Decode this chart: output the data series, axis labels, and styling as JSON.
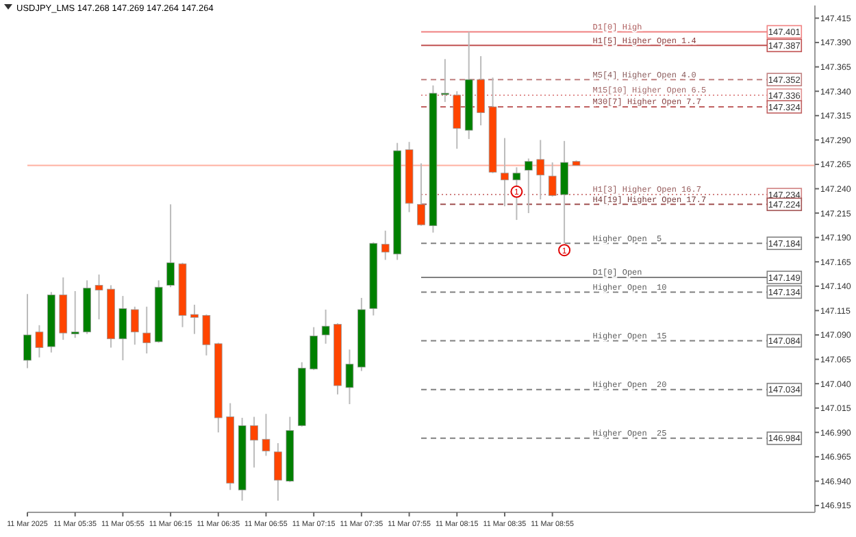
{
  "chart_data": {
    "type": "candlestick",
    "title": "USDJPY_LMS 147.268 147.269 147.264 147.264",
    "x": [
      "2025-03-11T05:15",
      "2025-03-11T05:20",
      "2025-03-11T05:25",
      "2025-03-11T05:30",
      "2025-03-11T05:35",
      "2025-03-11T05:40",
      "2025-03-11T05:45",
      "2025-03-11T05:50",
      "2025-03-11T05:55",
      "2025-03-11T06:00",
      "2025-03-11T06:05",
      "2025-03-11T06:10",
      "2025-03-11T06:15",
      "2025-03-11T06:20",
      "2025-03-11T06:25",
      "2025-03-11T06:30",
      "2025-03-11T06:35",
      "2025-03-11T06:40",
      "2025-03-11T06:45",
      "2025-03-11T06:50",
      "2025-03-11T06:55",
      "2025-03-11T07:00",
      "2025-03-11T07:05",
      "2025-03-11T07:10",
      "2025-03-11T07:15",
      "2025-03-11T07:20",
      "2025-03-11T07:25",
      "2025-03-11T07:30",
      "2025-03-11T07:35",
      "2025-03-11T07:40",
      "2025-03-11T07:45",
      "2025-03-11T07:50",
      "2025-03-11T07:55",
      "2025-03-11T08:00",
      "2025-03-11T08:05",
      "2025-03-11T08:10",
      "2025-03-11T08:15",
      "2025-03-11T08:20",
      "2025-03-11T08:25",
      "2025-03-11T08:30",
      "2025-03-11T08:35",
      "2025-03-11T08:40",
      "2025-03-11T08:45",
      "2025-03-11T08:50",
      "2025-03-11T08:55",
      "2025-03-11T09:00",
      "2025-03-11T09:05"
    ],
    "ohlc": [
      [
        147.064,
        147.132,
        147.056,
        147.09
      ],
      [
        147.093,
        147.1,
        147.067,
        147.077
      ],
      [
        147.078,
        147.134,
        147.072,
        147.131
      ],
      [
        147.131,
        147.149,
        147.085,
        147.092
      ],
      [
        147.091,
        147.135,
        147.087,
        147.093
      ],
      [
        147.093,
        147.146,
        147.091,
        147.138
      ],
      [
        147.141,
        147.152,
        147.106,
        147.136
      ],
      [
        147.137,
        147.141,
        147.077,
        147.086
      ],
      [
        147.086,
        147.13,
        147.064,
        147.117
      ],
      [
        147.116,
        147.119,
        147.08,
        147.093
      ],
      [
        147.092,
        147.119,
        147.071,
        147.082
      ],
      [
        147.083,
        147.146,
        147.082,
        147.139
      ],
      [
        147.141,
        147.224,
        147.139,
        147.164
      ],
      [
        147.163,
        147.164,
        147.098,
        147.11
      ],
      [
        147.111,
        147.121,
        147.091,
        147.108
      ],
      [
        147.11,
        147.111,
        147.069,
        147.08
      ],
      [
        147.081,
        147.082,
        146.99,
        147.005
      ],
      [
        147.006,
        147.02,
        146.931,
        146.938
      ],
      [
        146.931,
        147.005,
        146.92,
        146.997
      ],
      [
        146.997,
        147.006,
        146.954,
        146.982
      ],
      [
        146.983,
        147.009,
        146.966,
        146.971
      ],
      [
        146.97,
        146.979,
        146.92,
        146.941
      ],
      [
        146.94,
        147.006,
        146.939,
        146.992
      ],
      [
        146.997,
        147.062,
        146.996,
        147.056
      ],
      [
        147.055,
        147.098,
        147.054,
        147.089
      ],
      [
        147.09,
        147.116,
        147.081,
        147.099
      ],
      [
        147.101,
        147.102,
        147.029,
        147.038
      ],
      [
        147.036,
        147.075,
        147.019,
        147.06
      ],
      [
        147.057,
        147.128,
        147.053,
        147.116
      ],
      [
        147.117,
        147.185,
        147.11,
        147.184
      ],
      [
        147.183,
        147.197,
        147.167,
        147.175
      ],
      [
        147.173,
        147.287,
        147.167,
        147.279
      ],
      [
        147.28,
        147.288,
        147.216,
        147.225
      ],
      [
        147.224,
        147.266,
        147.202,
        147.203
      ],
      [
        147.202,
        147.346,
        147.195,
        147.338
      ],
      [
        147.337,
        147.373,
        147.329,
        147.338
      ],
      [
        147.336,
        147.34,
        147.281,
        147.302
      ],
      [
        147.3,
        147.401,
        147.291,
        147.352
      ],
      [
        147.352,
        147.376,
        147.305,
        147.318
      ],
      [
        147.324,
        147.354,
        147.256,
        147.257
      ],
      [
        147.256,
        147.292,
        147.222,
        147.249
      ],
      [
        147.249,
        147.262,
        147.208,
        147.256
      ],
      [
        147.259,
        147.271,
        147.215,
        147.268
      ],
      [
        147.27,
        147.29,
        147.229,
        147.254
      ],
      [
        147.253,
        147.267,
        147.232,
        147.233
      ],
      [
        147.234,
        147.289,
        147.184,
        147.267
      ],
      [
        147.268,
        147.269,
        147.264,
        147.264
      ]
    ],
    "colors": [
      "#008000",
      "#ff4500",
      "#008000",
      "#ff4500",
      "#008000",
      "#008000",
      "#ff4500",
      "#ff4500",
      "#008000",
      "#ff4500",
      "#ff4500",
      "#008000",
      "#008000",
      "#ff4500",
      "#ff4500",
      "#ff4500",
      "#ff4500",
      "#ff4500",
      "#008000",
      "#ff4500",
      "#ff4500",
      "#ff4500",
      "#008000",
      "#008000",
      "#008000",
      "#008000",
      "#ff4500",
      "#008000",
      "#008000",
      "#008000",
      "#ff4500",
      "#008000",
      "#ff4500",
      "#ff4500",
      "#008000",
      "#008000",
      "#ff4500",
      "#008000",
      "#ff4500",
      "#ff4500",
      "#ff4500",
      "#008000",
      "#008000",
      "#ff4500",
      "#ff4500",
      "#008000",
      "#ff4500"
    ],
    "xlim": [
      "2025-03-11T05:15",
      "2025-03-11T10:45"
    ],
    "xticks": [
      {
        "value": "2025-03-11T05:15",
        "label": "11 Mar 2025"
      },
      {
        "value": "2025-03-11T05:35",
        "label": "11 Mar 05:35"
      },
      {
        "value": "2025-03-11T05:55",
        "label": "11 Mar 05:55"
      },
      {
        "value": "2025-03-11T06:15",
        "label": "11 Mar 06:15"
      },
      {
        "value": "2025-03-11T06:35",
        "label": "11 Mar 06:35"
      },
      {
        "value": "2025-03-11T06:55",
        "label": "11 Mar 06:55"
      },
      {
        "value": "2025-03-11T07:15",
        "label": "11 Mar 07:15"
      },
      {
        "value": "2025-03-11T07:35",
        "label": "11 Mar 07:35"
      },
      {
        "value": "2025-03-11T07:55",
        "label": "11 Mar 07:55"
      },
      {
        "value": "2025-03-11T08:15",
        "label": "11 Mar 08:15"
      },
      {
        "value": "2025-03-11T08:35",
        "label": "11 Mar 08:35"
      },
      {
        "value": "2025-03-11T08:55",
        "label": "11 Mar 08:55"
      }
    ],
    "ylim": [
      146.908,
      147.428
    ],
    "yticks": [
      146.915,
      {
        "value": 146.94,
        "label": "146.940"
      },
      146.965,
      {
        "value": 146.99,
        "label": "146.990"
      },
      147.015,
      {
        "value": 147.04,
        "label": "147.040"
      },
      147.065,
      {
        "value": 147.09,
        "label": "147.090"
      },
      147.115,
      {
        "value": 147.14,
        "label": "147.140"
      },
      147.165,
      {
        "value": 147.19,
        "label": "147.190"
      },
      147.215,
      {
        "value": 147.24,
        "label": "147.240"
      },
      147.265,
      {
        "value": 147.29,
        "label": "147.290"
      },
      147.315,
      {
        "value": 147.34,
        "label": "147.340"
      },
      147.365,
      {
        "value": 147.39,
        "label": "147.390"
      },
      147.415
    ],
    "ref_lines": [
      {
        "axis": "y",
        "value": 147.401,
        "label": "D1[0] High",
        "color": "#f08080",
        "line_style": "solid"
      },
      {
        "axis": "y",
        "value": 147.387,
        "label": "H1[5] Higher Open 1.4",
        "color": "#c05050",
        "line_style": "solid"
      },
      {
        "axis": "y",
        "value": 147.352,
        "label": "M5[4] Higher Open 4.0",
        "color": "#c08080",
        "line_style": "dashed"
      },
      {
        "axis": "y",
        "value": 147.336,
        "label": "M15[10] Higher Open 6.5",
        "color": "#e09090",
        "line_style": "dotted"
      },
      {
        "axis": "y",
        "value": 147.324,
        "label": "M30[7] Higher Open 7.7",
        "color": "#c06060",
        "line_style": "dashed"
      },
      {
        "axis": "y",
        "value": 147.234,
        "label": "H1[3] Higher Open 16.7",
        "color": "#d08080",
        "line_style": "dotted"
      },
      {
        "axis": "y",
        "value": 147.224,
        "label": "H4[19] Higher Open 17.7",
        "color": "#a05050",
        "line_style": "dashed"
      },
      {
        "axis": "y",
        "value": 147.184,
        "label": "Higher Open  5",
        "color": "#808080",
        "line_style": "dashed"
      },
      {
        "axis": "y",
        "value": 147.149,
        "label": "D1[0] Open",
        "color": "#808080",
        "line_style": "solid"
      },
      {
        "axis": "y",
        "value": 147.134,
        "label": "Higher Open  10",
        "color": "#808080",
        "line_style": "dashed"
      },
      {
        "axis": "y",
        "value": 147.084,
        "label": "Higher Open  15",
        "color": "#808080",
        "line_style": "dashed"
      },
      {
        "axis": "y",
        "value": 147.034,
        "label": "Higher Open  20",
        "color": "#808080",
        "line_style": "dashed"
      },
      {
        "axis": "y",
        "value": 146.984,
        "label": "Higher Open  25",
        "color": "#808080",
        "line_style": "dashed"
      },
      {
        "axis": "y",
        "value": 147.264,
        "color": "#ffb0a0",
        "line_style": "solid"
      }
    ],
    "annotations": [
      {
        "text": "1",
        "x": "2025-03-11T08:40",
        "y": 147.237
      },
      {
        "text": "1",
        "x": "2025-03-11T09:00",
        "y": 147.177
      },
      {
        "text": "147.401",
        "x": "2025-03-11T10:25",
        "y": 147.401
      },
      {
        "text": "147.387",
        "x": "2025-03-11T10:25",
        "y": 147.387
      },
      {
        "text": "147.352",
        "x": "2025-03-11T10:25",
        "y": 147.352
      },
      {
        "text": "147.336",
        "x": "2025-03-11T10:25",
        "y": 147.336
      },
      {
        "text": "147.324",
        "x": "2025-03-11T10:25",
        "y": 147.324
      },
      {
        "text": "147.234",
        "x": "2025-03-11T10:25",
        "y": 147.234
      },
      {
        "text": "147.224",
        "x": "2025-03-11T10:25",
        "y": 147.224
      },
      {
        "text": "147.184",
        "x": "2025-03-11T10:25",
        "y": 147.184
      },
      {
        "text": "147.149",
        "x": "2025-03-11T10:25",
        "y": 147.149
      },
      {
        "text": "147.134",
        "x": "2025-03-11T10:25",
        "y": 147.134
      },
      {
        "text": "147.084",
        "x": "2025-03-11T10:25",
        "y": 147.084
      },
      {
        "text": "147.034",
        "x": "2025-03-11T10:25",
        "y": 147.034
      },
      {
        "text": "146.984",
        "x": "2025-03-11T10:25",
        "y": 146.984
      }
    ],
    "grid": false
  }
}
